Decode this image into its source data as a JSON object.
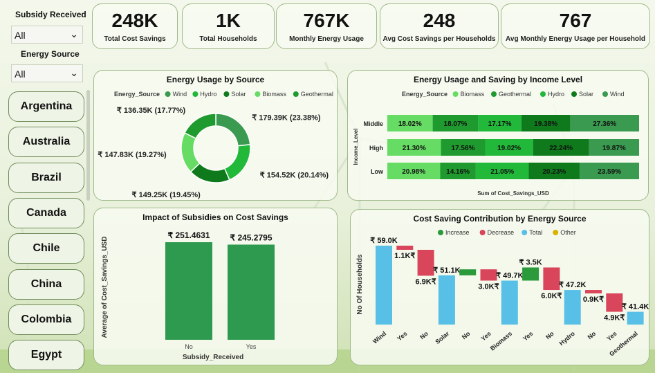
{
  "filters": {
    "subsidy_title": "Subsidy Received",
    "subsidy_value": "All",
    "energy_title": "Energy Source",
    "energy_value": "All",
    "countries": [
      "Argentina",
      "Australia",
      "Brazil",
      "Canada",
      "Chile",
      "China",
      "Colombia",
      "Egypt"
    ]
  },
  "kpis": [
    {
      "value": "248K",
      "label": "Total Cost Savings"
    },
    {
      "value": "1K",
      "label": "Total Households"
    },
    {
      "value": "767K",
      "label": "Monthly Energy Usage"
    },
    {
      "value": "248",
      "label": "Avg Cost Savings per Households"
    },
    {
      "value": "767",
      "label": "Avg Monthly Energy Usage per Household"
    }
  ],
  "chart_data": [
    {
      "type": "pie",
      "variant": "donut",
      "title": "Energy Usage by Source",
      "legend_title": "Energy_Source",
      "legend": [
        "Wind",
        "Hydro",
        "Solar",
        "Biomass",
        "Geothermal"
      ],
      "slices": [
        {
          "name": "Wind",
          "value": 179.39,
          "label": "₹ 179.39K (23.38%)",
          "color": "#3a9a50"
        },
        {
          "name": "Hydro",
          "value": 154.52,
          "label": "₹ 154.52K (20.14%)",
          "color": "#22b83a"
        },
        {
          "name": "Solar",
          "value": 149.25,
          "label": "₹ 149.25K (19.45%)",
          "color": "#0f7a1c"
        },
        {
          "name": "Biomass",
          "value": 147.83,
          "label": "₹ 147.83K (19.27%)",
          "color": "#67dc64"
        },
        {
          "name": "Geothermal",
          "value": 136.35,
          "label": "₹ 136.35K (17.77%)",
          "color": "#1f9a2e"
        }
      ]
    },
    {
      "type": "bar",
      "variant": "100% stacked horizontal",
      "title": "Energy Usage and Saving by Income Level",
      "legend_title": "Energy_Source",
      "ylabel": "Income_Level",
      "xlabel": "Sum of Cost_Savings_USD",
      "categories": [
        "Middle",
        "High",
        "Low"
      ],
      "series": [
        {
          "name": "Biomass",
          "color": "#67dc64",
          "values": [
            18.02,
            21.3,
            20.98
          ],
          "labels": [
            "18.02%",
            "21.30%",
            "20.98%"
          ]
        },
        {
          "name": "Geothermal",
          "color": "#1f9a2e",
          "values": [
            18.07,
            17.56,
            14.16
          ],
          "labels": [
            "18.07%",
            "17.56%",
            "14.16%"
          ]
        },
        {
          "name": "Hydro",
          "color": "#22b83a",
          "values": [
            17.17,
            19.02,
            21.05
          ],
          "labels": [
            "17.17%",
            "19.02%",
            "21.05%"
          ]
        },
        {
          "name": "Solar",
          "color": "#0f7a1c",
          "values": [
            19.38,
            22.24,
            20.23
          ],
          "labels": [
            "19.38%",
            "22.24%",
            "20.23%"
          ]
        },
        {
          "name": "Wind",
          "color": "#3a9a50",
          "values": [
            27.36,
            19.87,
            23.59
          ],
          "labels": [
            "27.36%",
            "19.87%",
            "23.59%"
          ]
        }
      ]
    },
    {
      "type": "bar",
      "title": "Impact of Subsidies on Cost Savings",
      "xlabel": "Subsidy_Received",
      "ylabel": "Average of Cost_Savings_USD",
      "categories": [
        "No",
        "Yes"
      ],
      "values": [
        251.4631,
        245.2795
      ],
      "labels": [
        "₹ 251.4631",
        "₹ 245.2795"
      ],
      "color": "#2e9a4f"
    },
    {
      "type": "bar",
      "variant": "waterfall",
      "title": "Cost Saving Contribution by Energy Source",
      "ylabel": "No Of Households",
      "legend": [
        {
          "name": "Increase",
          "color": "#2a9a3a"
        },
        {
          "name": "Decrease",
          "color": "#d9455a"
        },
        {
          "name": "Total",
          "color": "#58c0e6"
        },
        {
          "name": "Other",
          "color": "#d9b300"
        }
      ],
      "steps": [
        {
          "x": "Wind",
          "kind": "total",
          "start": 0,
          "end": 59.0,
          "label": "₹ 59.0K"
        },
        {
          "x": "Yes",
          "kind": "decrease",
          "start": 59.0,
          "end": 57.9,
          "label": "1.1K₹"
        },
        {
          "x": "No",
          "kind": "decrease",
          "start": 57.9,
          "end": 51.0,
          "label": "6.9K₹"
        },
        {
          "x": "Solar",
          "kind": "total",
          "start": 0,
          "end": 51.1,
          "label": "₹ 51.1K"
        },
        {
          "x": "No",
          "kind": "increase",
          "start": 51.1,
          "end": 52.7,
          "label": ""
        },
        {
          "x": "Yes",
          "kind": "decrease",
          "start": 52.7,
          "end": 49.7,
          "label": "3.0K₹"
        },
        {
          "x": "Biomass",
          "kind": "total",
          "start": 0,
          "end": 49.7,
          "label": "₹ 49.7K"
        },
        {
          "x": "Yes",
          "kind": "increase",
          "start": 49.7,
          "end": 53.2,
          "label": "₹ 3.5K"
        },
        {
          "x": "No",
          "kind": "decrease",
          "start": 53.2,
          "end": 47.2,
          "label": "6.0K₹"
        },
        {
          "x": "Hydro",
          "kind": "total",
          "start": 0,
          "end": 47.2,
          "label": "₹ 47.2K"
        },
        {
          "x": "No",
          "kind": "decrease",
          "start": 47.2,
          "end": 46.3,
          "label": "0.9K₹"
        },
        {
          "x": "Yes",
          "kind": "decrease",
          "start": 46.3,
          "end": 41.4,
          "label": "4.9K₹"
        },
        {
          "x": "Geothermal",
          "kind": "total",
          "start": 0,
          "end": 41.4,
          "label": "₹ 41.4K"
        }
      ]
    }
  ]
}
